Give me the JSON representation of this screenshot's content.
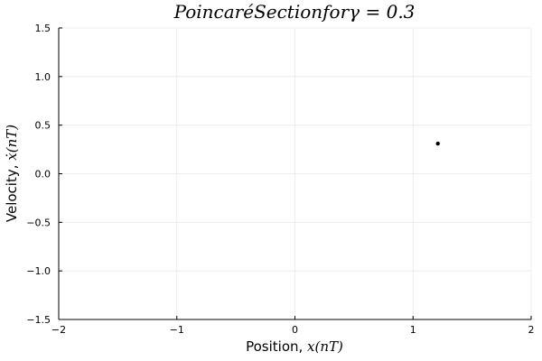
{
  "chart_data": {
    "type": "scatter",
    "title": "PoincaréSectionforγ = 0.3",
    "xlabel": {
      "text": "Position, ",
      "math": "x(nT)"
    },
    "ylabel": {
      "text": "Velocity, ",
      "math": "ẋ(nT)"
    },
    "xlim": [
      -2,
      2
    ],
    "ylim": [
      -1.5,
      1.5
    ],
    "xticks": [
      -2,
      -1,
      0,
      1,
      2
    ],
    "xtick_labels": [
      "−2",
      "−1",
      "0",
      "1",
      "2"
    ],
    "yticks": [
      -1.5,
      -1.0,
      -0.5,
      0.0,
      0.5,
      1.0,
      1.5
    ],
    "ytick_labels": [
      "−1.5",
      "−1.0",
      "−0.5",
      "0.0",
      "0.5",
      "1.0",
      "1.5"
    ],
    "grid": true,
    "legend": "none",
    "series": [
      {
        "name": "poincare-points",
        "color": "#000000",
        "points": [
          [
            1.21,
            0.31
          ]
        ]
      }
    ]
  }
}
